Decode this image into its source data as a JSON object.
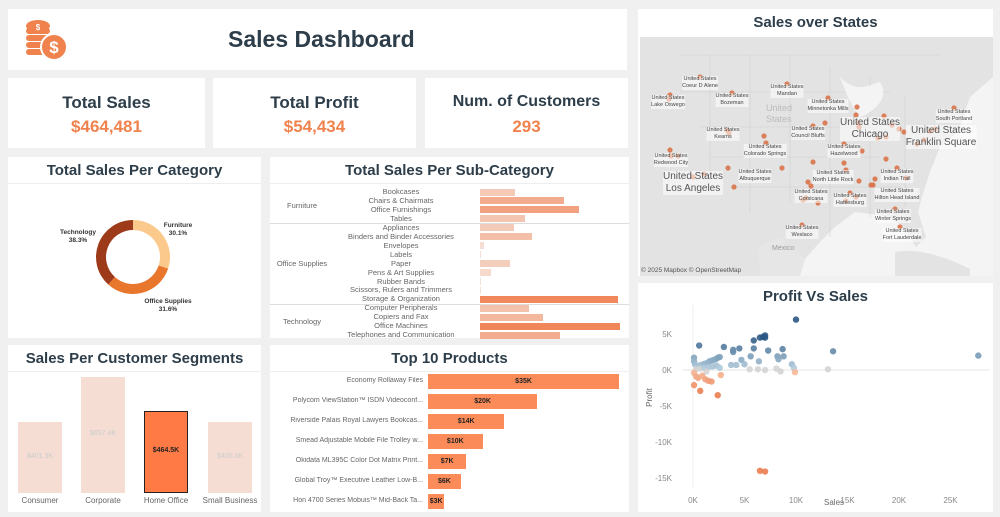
{
  "header": {
    "title": "Sales Dashboard",
    "icon": "coins-dollar-icon",
    "accent": "#f0834d"
  },
  "kpis": [
    {
      "label": "Total Sales",
      "value": "$464,481"
    },
    {
      "label": "Total Profit",
      "value": "$54,434"
    },
    {
      "label": "Num. of Customers",
      "value": "293"
    }
  ],
  "chart_data": [
    {
      "type": "pie",
      "title": "Total Sales Per Category",
      "donut": true,
      "slices": [
        {
          "label": "Furniture",
          "pct": "30.1%",
          "value": 30.1,
          "color": "#fcc98d"
        },
        {
          "label": "Office Supplies",
          "pct": "31.6%",
          "value": 31.6,
          "color": "#e8762c"
        },
        {
          "label": "Technology",
          "pct": "38.3%",
          "value": 38.3,
          "color": "#9c3a1a"
        }
      ]
    },
    {
      "type": "bar",
      "orientation": "horizontal",
      "title": "Total Sales Per Sub-Category",
      "groups": [
        {
          "category": "Furniture",
          "items": [
            {
              "label": "Bookcases",
              "value": 19
            },
            {
              "label": "Chairs & Chairmats",
              "value": 45
            },
            {
              "label": "Office Furnishings",
              "value": 53
            },
            {
              "label": "Tables",
              "value": 24
            }
          ]
        },
        {
          "category": "Office Supplies",
          "items": [
            {
              "label": "Appliances",
              "value": 18
            },
            {
              "label": "Binders and Binder Accessories",
              "value": 28
            },
            {
              "label": "Envelopes",
              "value": 2
            },
            {
              "label": "Labels",
              "value": 0.5
            },
            {
              "label": "Paper",
              "value": 16
            },
            {
              "label": "Pens & Art Supplies",
              "value": 6
            },
            {
              "label": "Rubber Bands",
              "value": 0.3
            },
            {
              "label": "Scissors, Rulers and Trimmers",
              "value": 0.3
            },
            {
              "label": "Storage & Organization",
              "value": 74
            }
          ]
        },
        {
          "category": "Technology",
          "items": [
            {
              "label": "Computer Peripherals",
              "value": 26
            },
            {
              "label": "Copiers and Fax",
              "value": 34
            },
            {
              "label": "Office Machines",
              "value": 75
            },
            {
              "label": "Telephones and Communication",
              "value": 43
            }
          ]
        }
      ]
    },
    {
      "type": "bar",
      "title": "Sales Per Customer Segments",
      "categories": [
        "Consumer",
        "Corporate",
        "Home Office",
        "Small Business"
      ],
      "values": [
        401.3,
        657.4,
        464.5,
        400.3
      ],
      "labels": [
        "$401.3K",
        "$657.4K",
        "$464.5K",
        "$400.3K"
      ],
      "highlighted": "Home Office"
    },
    {
      "type": "bar",
      "orientation": "horizontal",
      "title": "Top 10  Products",
      "categories": [
        "Economy Rollaway Files",
        "Polycom ViewStation™ ISDN Videoconf...",
        "Riverside Palais Royal Lawyers Bookcas...",
        "Smead Adjustable Mobile File Trolley w...",
        "Okidata ML395C Color Dot Matrix Print...",
        "Global Troy™ Executive Leather Low-B...",
        "Hon 4700 Series Mobuis™ Mid-Back Ta..."
      ],
      "values": [
        35,
        20,
        14,
        10,
        7,
        6,
        3
      ],
      "labels": [
        "$35K",
        "$20K",
        "$14K",
        "$10K",
        "$7K",
        "$6K",
        "$3K"
      ]
    },
    {
      "type": "scatter",
      "title": "Profit Vs Sales",
      "xlabel": "Sales",
      "ylabel": "Profit",
      "xlim": [
        0,
        28
      ],
      "ylim": [
        -16,
        7.5
      ],
      "xticks": [
        "0K",
        "5K",
        "10K",
        "15K",
        "20K",
        "25K"
      ],
      "yticks": [
        "5K",
        "0K",
        "-5K",
        "-10K",
        "-15K"
      ],
      "points": [
        [
          10,
          7
        ],
        [
          0.6,
          3.4
        ],
        [
          3,
          3.2
        ],
        [
          4.5,
          3
        ],
        [
          5.9,
          4.1
        ],
        [
          6.5,
          4.5
        ],
        [
          6.8,
          4.6
        ],
        [
          7,
          4.8
        ],
        [
          7,
          4.5
        ],
        [
          3.9,
          2.8
        ],
        [
          3.9,
          2.5
        ],
        [
          5.9,
          3
        ],
        [
          7.3,
          2.7
        ],
        [
          8.7,
          2.9
        ],
        [
          13.6,
          2.6
        ],
        [
          27.7,
          2
        ],
        [
          5.6,
          1.9
        ],
        [
          6.4,
          1.2
        ],
        [
          4.7,
          1.4
        ],
        [
          5,
          0.8
        ],
        [
          8.2,
          1.9
        ],
        [
          8.8,
          1.9
        ],
        [
          8.3,
          1.5
        ],
        [
          9.6,
          0.8
        ],
        [
          9.8,
          0.3
        ],
        [
          9.9,
          -0.3
        ],
        [
          13.1,
          0.1
        ],
        [
          5.5,
          0.1
        ],
        [
          6.3,
          0.1
        ],
        [
          7,
          0
        ],
        [
          8.1,
          0.2
        ],
        [
          8.5,
          -0.2
        ],
        [
          2.7,
          -0.7
        ],
        [
          3.7,
          0.7
        ],
        [
          4.2,
          0.7
        ],
        [
          0.1,
          1.7
        ],
        [
          0.1,
          1.2
        ],
        [
          0.2,
          0.8
        ],
        [
          0.4,
          0.4
        ],
        [
          0.6,
          0.6
        ],
        [
          0.8,
          0.7
        ],
        [
          1,
          0.8
        ],
        [
          1.2,
          0.9
        ],
        [
          1.4,
          1
        ],
        [
          1.6,
          1.2
        ],
        [
          1.8,
          1.3
        ],
        [
          2,
          1.4
        ],
        [
          2.2,
          1.5
        ],
        [
          2.4,
          1.7
        ],
        [
          2.6,
          1.8
        ],
        [
          0.3,
          0.1
        ],
        [
          0.7,
          0.2
        ],
        [
          1.1,
          0.3
        ],
        [
          1.5,
          0.4
        ],
        [
          1.9,
          0.5
        ],
        [
          2.3,
          0.6
        ],
        [
          2.6,
          0.3
        ],
        [
          1.3,
          -0.2
        ],
        [
          0.1,
          -0.4
        ],
        [
          0.3,
          -0.9
        ],
        [
          0.5,
          -1.1
        ],
        [
          0.9,
          -0.8
        ],
        [
          1.2,
          -1.3
        ],
        [
          1.5,
          -1.5
        ],
        [
          1.8,
          -1.6
        ],
        [
          0.1,
          -2.1
        ],
        [
          0.7,
          -2.9
        ],
        [
          2.4,
          -3.5
        ],
        [
          6.5,
          -14
        ],
        [
          7,
          -14.1
        ]
      ]
    }
  ],
  "map": {
    "title": "Sales over States",
    "attribution": "© 2025 Mapbox © OpenStreetMap",
    "country": "United States",
    "region_label": "Mexico",
    "faded_label": "United States",
    "cities": [
      "Coeur D Alene",
      "Lake Oswego",
      "Bozeman",
      "Mandan",
      "Minnetonka Mills",
      "South Portland",
      "Chicago",
      "Council Bluffs",
      "Franklin Square",
      "Kearns",
      "Colorado Springs",
      "Hazelwood",
      "Redwood City",
      "Los Angeles",
      "Albuquerque",
      "North Little Rock",
      "Indian Trail",
      "Corsicana",
      "Hattiesburg",
      "Hilton Head Island",
      "Winter Springs",
      "Weslaco",
      "Fort Lauderdale"
    ],
    "dot_color": "#d9734a"
  }
}
